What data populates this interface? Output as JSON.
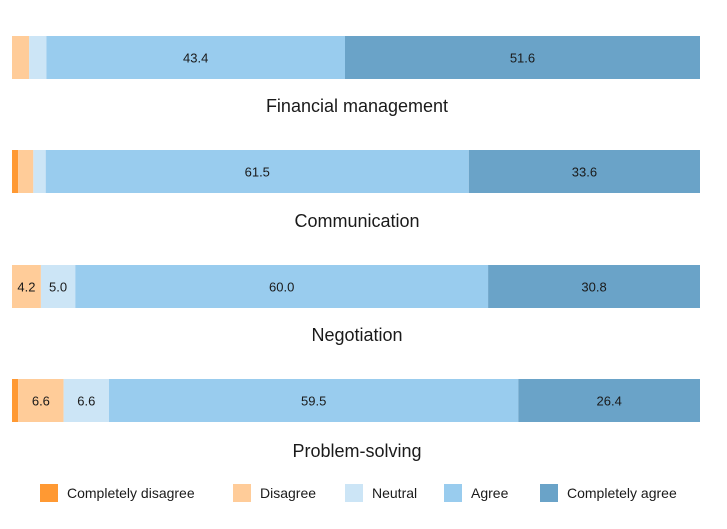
{
  "chart_data": {
    "type": "bar",
    "orientation": "horizontal",
    "stacked": true,
    "normalized_to_100": true,
    "grid": false,
    "legend_position": "bottom",
    "categories_legend": [
      {
        "name": "Completely disagree",
        "color": "#ff9933"
      },
      {
        "name": "Disagree",
        "color": "#ffcc99"
      },
      {
        "name": "Neutral",
        "color": "#cce5f6"
      },
      {
        "name": "Agree",
        "color": "#99ccee"
      },
      {
        "name": "Completely agree",
        "color": "#6aa3c8"
      }
    ],
    "panels": [
      {
        "title": "",
        "values": [
          0.0,
          2.5,
          2.5,
          43.4,
          51.6
        ],
        "labels": [
          "",
          "",
          "",
          "43.4",
          "51.6"
        ]
      },
      {
        "title": "Financial management",
        "values": [
          0.9,
          2.2,
          1.8,
          61.5,
          33.6
        ],
        "labels": [
          "",
          "",
          "",
          "61.5",
          "33.6"
        ]
      },
      {
        "title": "Communication",
        "values": [
          0.0,
          4.2,
          5.0,
          60.0,
          30.8
        ],
        "labels": [
          "",
          "4.2",
          "5.0",
          "60.0",
          "30.8"
        ]
      },
      {
        "title": "Negotiation",
        "values": [
          0.9,
          6.6,
          6.6,
          59.5,
          26.4
        ],
        "labels": [
          "",
          "6.6",
          "6.6",
          "59.5",
          "26.4"
        ]
      }
    ],
    "bottom_title": "Problem-solving"
  }
}
